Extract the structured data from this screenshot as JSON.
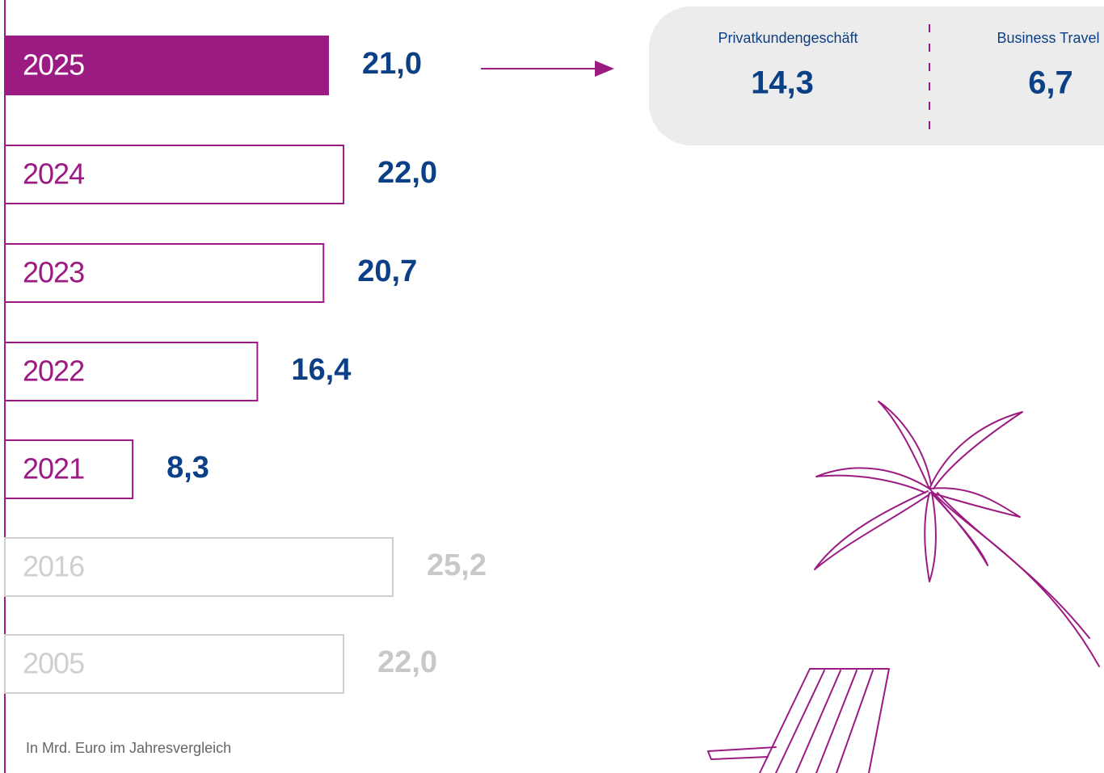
{
  "chart_data": {
    "type": "bar",
    "categories": [
      "2025",
      "2024",
      "2023",
      "2022",
      "2021",
      "2016",
      "2005"
    ],
    "values": [
      21.0,
      22.0,
      20.7,
      16.4,
      8.3,
      25.2,
      22.0
    ],
    "value_labels": [
      "21,0",
      "22,0",
      "20,7",
      "16,4",
      "8,3",
      "25,2",
      "22,0"
    ],
    "colors": [
      "#9c1b82",
      "#9c1b82",
      "#9c1b82",
      "#9c1b82",
      "#9c1b82",
      "#cfcfcf",
      "#cfcfcf"
    ],
    "label_colors": [
      "#0b3f86",
      "#0b3f86",
      "#0b3f86",
      "#0b3f86",
      "#0b3f86",
      "#c8c8c8",
      "#c8c8c8"
    ],
    "filled": [
      true,
      false,
      false,
      false,
      false,
      false,
      false
    ],
    "breakdown": [
      {
        "name": "Privatkundengeschäft",
        "value": 14.3,
        "value_label": "14,3"
      },
      {
        "name": "Business Travel",
        "value": 6.7,
        "value_label": "6,7"
      }
    ],
    "note": "In Mrd. Euro im Jahresvergleich"
  }
}
